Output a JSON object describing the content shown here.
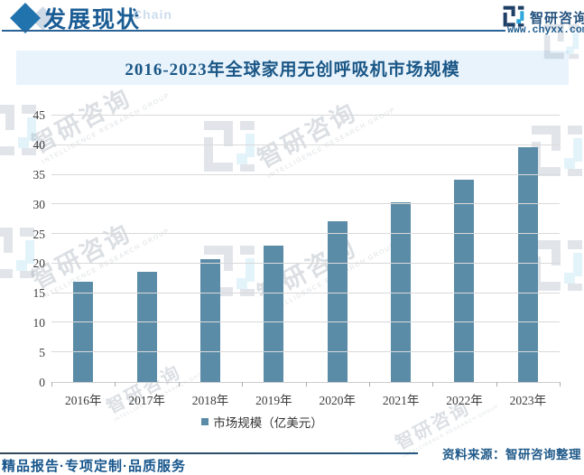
{
  "header": {
    "section_title": "发展现状",
    "ghost_text": "Chain",
    "brand_name": "智研咨询",
    "website": "www.chyxx.com"
  },
  "chart_data": {
    "type": "bar",
    "title": "2016-2023年全球家用无创呼吸机市场规模",
    "categories": [
      "2016年",
      "2017年",
      "2018年",
      "2019年",
      "2020年",
      "2021年",
      "2022年",
      "2023年"
    ],
    "values": [
      17.0,
      18.6,
      20.8,
      23.1,
      27.1,
      30.3,
      34.1,
      39.6
    ],
    "series_name": "市场规模（亿美元）",
    "xlabel": "",
    "ylabel": "",
    "ylim": [
      0,
      45
    ],
    "ytick_step": 5,
    "grid": true,
    "legend_position": "bottom",
    "bar_color": "#5b8ca7"
  },
  "footer": {
    "source": "资料来源：智研咨询整理",
    "motto": "精品报告·专项定制·品质服务"
  },
  "watermark": {
    "text": "智研咨询",
    "subtext": "INTELLIGENCE RESEARCH GROUP"
  },
  "colors": {
    "accent_blue": "#1a5c94",
    "title_bar_bg": "#e9f3fb",
    "bar": "#5b8ca7",
    "gridline": "#d9d9d9",
    "logo_navy": "#1e3f66",
    "logo_cyan": "#2ea7db"
  }
}
